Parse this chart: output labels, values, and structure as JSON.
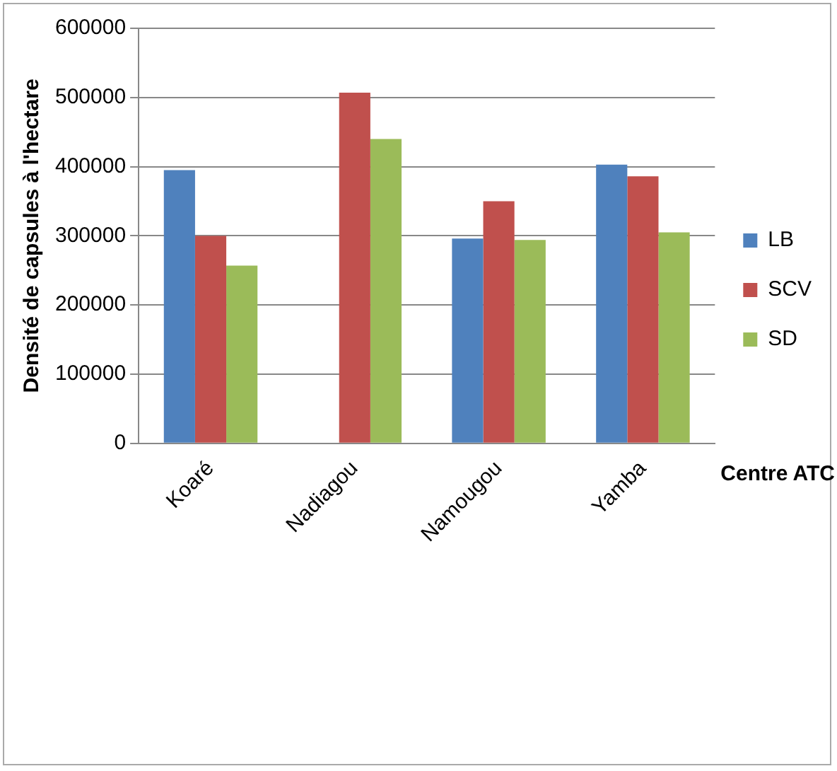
{
  "chart_data": {
    "type": "bar",
    "ylabel": "Densité de capsules à l'hectare",
    "xlabel": "Centre ATC",
    "categories": [
      "Koaré",
      "Nadiagou",
      "Namougou",
      "Yamba"
    ],
    "series": [
      {
        "name": "LB",
        "color": "#4f81bd",
        "values": [
          395000,
          null,
          296000,
          403000
        ]
      },
      {
        "name": "SCV",
        "color": "#c0504d",
        "values": [
          300000,
          507000,
          350000,
          386000
        ]
      },
      {
        "name": "SD",
        "color": "#9bbb59",
        "values": [
          257000,
          440000,
          294000,
          305000
        ]
      }
    ],
    "ylim": [
      0,
      600000
    ],
    "yticks": [
      0,
      100000,
      200000,
      300000,
      400000,
      500000,
      600000
    ],
    "grid": "y",
    "legend": "right"
  }
}
